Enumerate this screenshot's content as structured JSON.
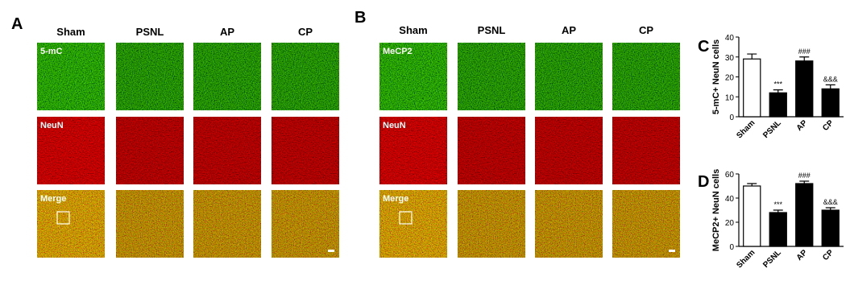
{
  "panels": [
    {
      "label": "A",
      "columns": [
        "Sham",
        "PSNL",
        "AP",
        "CP"
      ],
      "rows": [
        "5-mC",
        "NeuN",
        "Merge"
      ]
    },
    {
      "label": "B",
      "columns": [
        "Sham",
        "PSNL",
        "AP",
        "CP"
      ],
      "rows": [
        "MeCP2",
        "NeuN",
        "Merge"
      ]
    }
  ],
  "chart_data": [
    {
      "type": "bar",
      "label": "C",
      "y_label": "5-mC+ NeuN cells",
      "categories": [
        "Sham",
        "PSNL",
        "AP",
        "CP"
      ],
      "values": [
        29,
        12,
        28,
        14
      ],
      "errors": [
        2.5,
        1.5,
        2,
        2
      ],
      "annotations": [
        null,
        "***",
        "###",
        "&&&"
      ],
      "colors": [
        "#ffffff",
        "#000000",
        "#000000",
        "#000000"
      ],
      "ylim": [
        0,
        40
      ],
      "yticks": [
        0,
        10,
        20,
        30,
        40
      ]
    },
    {
      "type": "bar",
      "label": "D",
      "y_label": "MeCP2+ NeuN cells",
      "categories": [
        "Sham",
        "PSNL",
        "AP",
        "CP"
      ],
      "values": [
        50,
        28,
        52,
        30
      ],
      "errors": [
        2,
        2,
        2,
        2
      ],
      "annotations": [
        null,
        "***",
        "###",
        "&&&"
      ],
      "colors": [
        "#ffffff",
        "#000000",
        "#000000",
        "#000000"
      ],
      "ylim": [
        0,
        60
      ],
      "yticks": [
        0,
        20,
        40,
        60
      ]
    }
  ]
}
